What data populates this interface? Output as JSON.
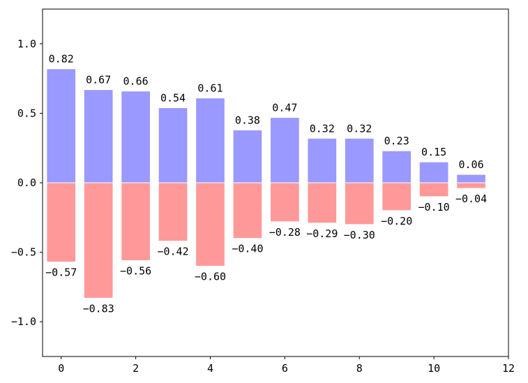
{
  "chart_data": {
    "type": "bar",
    "title": "",
    "xlabel": "",
    "ylabel": "",
    "x": [
      0,
      1,
      2,
      3,
      4,
      5,
      6,
      7,
      8,
      9,
      10,
      11
    ],
    "series": [
      {
        "color": "#9999ff",
        "values": [
          0.82,
          0.67,
          0.66,
          0.54,
          0.61,
          0.38,
          0.47,
          0.32,
          0.32,
          0.23,
          0.15,
          0.06
        ],
        "labels": [
          "0.82",
          "0.67",
          "0.66",
          "0.54",
          "0.61",
          "0.38",
          "0.47",
          "0.32",
          "0.32",
          "0.23",
          "0.15",
          "0.06"
        ]
      },
      {
        "color": "#ff9999",
        "values": [
          -0.57,
          -0.83,
          -0.56,
          -0.42,
          -0.6,
          -0.4,
          -0.28,
          -0.29,
          -0.3,
          -0.2,
          -0.1,
          -0.04
        ],
        "labels": [
          "−0.57",
          "−0.83",
          "−0.56",
          "−0.42",
          "−0.60",
          "−0.40",
          "−0.28",
          "−0.29",
          "−0.30",
          "−0.20",
          "−0.10",
          "−0.04"
        ]
      }
    ],
    "xlim": [
      -0.5,
      12
    ],
    "ylim": [
      -1.25,
      1.25
    ],
    "xticks": [
      0,
      2,
      4,
      6,
      8,
      10,
      12
    ],
    "xtick_labels": [
      "0",
      "2",
      "4",
      "6",
      "8",
      "10",
      "12"
    ],
    "yticks": [
      1.0,
      0.5,
      0.0,
      -0.5,
      -1.0
    ],
    "ytick_labels": [
      "1.0",
      "0.5",
      "0.0",
      "−0.5",
      "−1.0"
    ],
    "grid": false,
    "legend": "none"
  }
}
